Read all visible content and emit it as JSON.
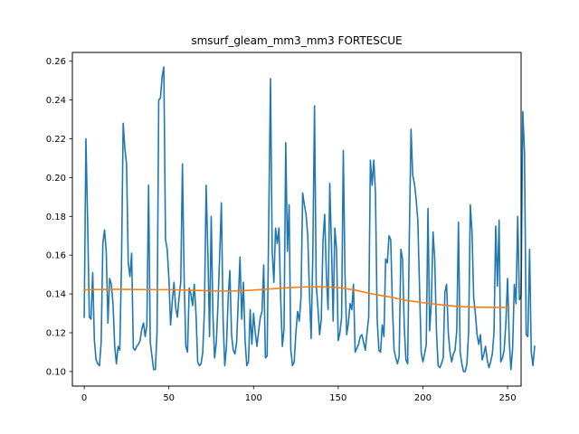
{
  "chart_data": {
    "type": "line",
    "title": "smsurf_gleam_mm3_mm3 FORTESCUE",
    "xlabel": "",
    "ylabel": "",
    "xlim": [
      -7,
      258
    ],
    "ylim": [
      0.0925,
      0.2645
    ],
    "xticks": [
      0,
      50,
      100,
      150,
      200,
      250
    ],
    "yticks": [
      0.1,
      0.12,
      0.14,
      0.16,
      0.18,
      0.2,
      0.22,
      0.24,
      0.26
    ],
    "ytick_labels": [
      "0.10",
      "0.12",
      "0.14",
      "0.16",
      "0.18",
      "0.20",
      "0.22",
      "0.24",
      "0.26"
    ],
    "grid": false,
    "series": [
      {
        "color": "#1f77b4",
        "x_start": 0,
        "values": [
          0.128,
          0.22,
          0.178,
          0.128,
          0.127,
          0.151,
          0.116,
          0.106,
          0.104,
          0.103,
          0.115,
          0.166,
          0.173,
          0.162,
          0.125,
          0.148,
          0.145,
          0.135,
          0.113,
          0.104,
          0.113,
          0.111,
          0.155,
          0.228,
          0.215,
          0.207,
          0.156,
          0.149,
          0.161,
          0.112,
          0.111,
          0.113,
          0.114,
          0.116,
          0.122,
          0.125,
          0.118,
          0.124,
          0.196,
          0.115,
          0.108,
          0.101,
          0.101,
          0.12,
          0.24,
          0.241,
          0.252,
          0.257,
          0.168,
          0.163,
          0.148,
          0.124,
          0.136,
          0.146,
          0.133,
          0.128,
          0.138,
          0.146,
          0.207,
          0.148,
          0.113,
          0.11,
          0.143,
          0.14,
          0.134,
          0.145,
          0.13,
          0.105,
          0.103,
          0.104,
          0.11,
          0.132,
          0.196,
          0.162,
          0.118,
          0.18,
          0.129,
          0.107,
          0.115,
          0.135,
          0.16,
          0.187,
          0.127,
          0.103,
          0.113,
          0.138,
          0.152,
          0.119,
          0.111,
          0.109,
          0.115,
          0.137,
          0.159,
          0.127,
          0.146,
          0.116,
          0.103,
          0.105,
          0.132,
          0.114,
          0.13,
          0.12,
          0.113,
          0.121,
          0.128,
          0.131,
          0.155,
          0.107,
          0.108,
          0.18,
          0.251,
          0.162,
          0.146,
          0.174,
          0.166,
          0.174,
          0.138,
          0.113,
          0.122,
          0.218,
          0.162,
          0.186,
          0.111,
          0.103,
          0.105,
          0.12,
          0.131,
          0.126,
          0.138,
          0.192,
          0.186,
          0.181,
          0.17,
          0.141,
          0.117,
          0.16,
          0.237,
          0.145,
          0.133,
          0.119,
          0.127,
          0.167,
          0.181,
          0.15,
          0.132,
          0.197,
          0.166,
          0.126,
          0.174,
          0.163,
          0.116,
          0.12,
          0.128,
          0.214,
          0.15,
          0.119,
          0.125,
          0.135,
          0.132,
          0.145,
          0.11,
          0.112,
          0.114,
          0.118,
          0.119,
          0.115,
          0.111,
          0.12,
          0.128,
          0.209,
          0.196,
          0.209,
          0.192,
          0.127,
          0.111,
          0.11,
          0.124,
          0.118,
          0.158,
          0.156,
          0.17,
          0.168,
          0.134,
          0.111,
          0.107,
          0.104,
          0.108,
          0.163,
          0.158,
          0.123,
          0.106,
          0.104,
          0.17,
          0.225,
          0.201,
          0.197,
          0.189,
          0.178,
          0.144,
          0.11,
          0.105,
          0.109,
          0.114,
          0.184,
          0.121,
          0.136,
          0.172,
          0.158,
          0.121,
          0.103,
          0.102,
          0.104,
          0.107,
          0.141,
          0.145,
          0.12,
          0.11,
          0.105,
          0.109,
          0.111,
          0.121,
          0.177,
          0.11,
          0.104,
          0.1,
          0.1,
          0.104,
          0.12,
          0.186,
          0.172,
          0.138,
          0.13,
          0.119,
          0.114,
          0.119,
          0.106,
          0.109,
          0.113,
          0.106,
          0.102,
          0.105,
          0.109,
          0.12,
          0.175,
          0.144,
          0.178,
          0.105,
          0.107,
          0.111,
          0.125,
          0.148,
          0.116,
          0.101,
          0.112,
          0.145,
          0.135,
          0.18,
          0.137,
          0.139,
          0.234,
          0.213,
          0.119,
          0.118,
          0.163,
          0.11,
          0.103,
          0.113
        ],
        "values_note_removed": true
      },
      {
        "color": "#ff7f0e",
        "x": [
          0,
          10,
          20,
          30,
          40,
          50,
          60,
          70,
          80,
          90,
          100,
          110,
          120,
          130,
          140,
          150,
          160,
          170,
          180,
          190,
          200,
          210,
          220,
          230,
          240,
          251
        ],
        "values": [
          0.1422,
          0.1423,
          0.1424,
          0.1423,
          0.1422,
          0.1422,
          0.142,
          0.1417,
          0.1415,
          0.1415,
          0.142,
          0.1426,
          0.1432,
          0.1436,
          0.1437,
          0.1433,
          0.142,
          0.14,
          0.1385,
          0.1367,
          0.1355,
          0.1345,
          0.1336,
          0.1332,
          0.1331,
          0.133
        ]
      }
    ]
  }
}
